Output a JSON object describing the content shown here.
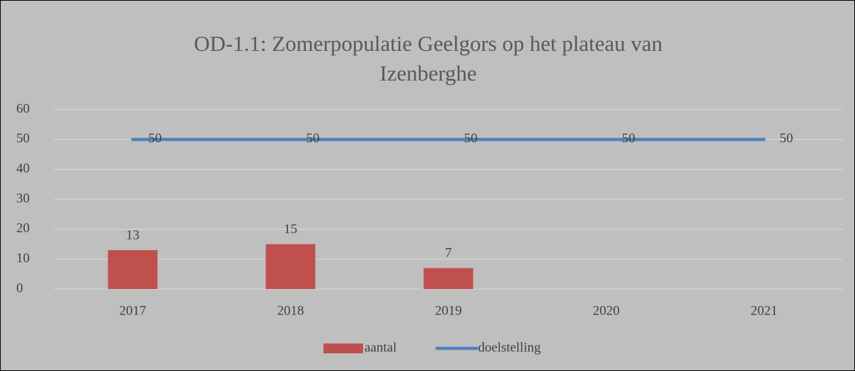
{
  "chart_data": {
    "type": "bar",
    "title": "OD-1.1: Zomerpopulatie Geelgors op het plateau van Izenberghe",
    "categories": [
      "2017",
      "2018",
      "2019",
      "2020",
      "2021"
    ],
    "series": [
      {
        "name": "aantal",
        "type": "bar",
        "color": "#c0504d",
        "values": [
          13,
          15,
          7,
          null,
          null
        ]
      },
      {
        "name": "doelstelling",
        "type": "line",
        "color": "#4f81bd",
        "values": [
          50,
          50,
          50,
          50,
          50
        ]
      }
    ],
    "ylim": [
      0,
      60
    ],
    "yticks": [
      0,
      10,
      20,
      30,
      40,
      50,
      60
    ],
    "grid": true,
    "legend": "bottom"
  }
}
